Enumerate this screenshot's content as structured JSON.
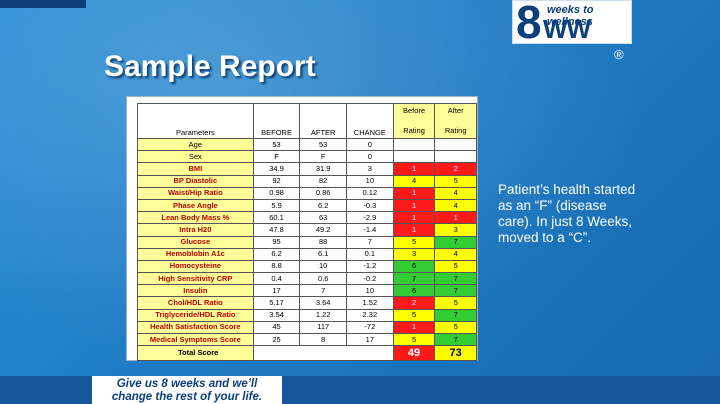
{
  "slide": {
    "title": "Sample Report",
    "logo": {
      "number": "8",
      "tagline": "weeks to wellness",
      "letters": "WW"
    },
    "registered_mark": "®",
    "note": "Patient’s health started as an “F” (disease care). In just 8 Weeks, moved to a “C”.",
    "tagline_line1": "Give us 8 weeks and we’ll",
    "tagline_line2": "change the rest of your life.",
    "colors": {
      "background": "#1f7cc4",
      "rating_red": "#ff1a1a",
      "rating_yellow": "#ffff00",
      "rating_green": "#33cc33",
      "param_fill": "#ffff99"
    }
  },
  "table": {
    "headers": {
      "parameters": "Parameters",
      "before": "BEFORE",
      "after": "AFTER",
      "change": "CHANGE",
      "before_rating_1": "Before",
      "before_rating_2": "Rating",
      "after_rating_1": "After",
      "after_rating_2": "Rating"
    },
    "rows": [
      {
        "param": "Age",
        "before": "53",
        "after": "53",
        "change": "0",
        "before_rating": "",
        "after_rating": "",
        "before_color": "white",
        "after_color": "white",
        "style": "plain"
      },
      {
        "param": "Sex",
        "before": "F",
        "after": "F",
        "change": "0",
        "before_rating": "",
        "after_rating": "",
        "before_color": "white",
        "after_color": "white",
        "style": "plain"
      },
      {
        "param": "BMI",
        "before": "34.9",
        "after": "31.9",
        "change": "3",
        "before_rating": "1",
        "after_rating": "2",
        "before_color": "red",
        "after_color": "red",
        "style": "red"
      },
      {
        "param": "BP Diastolic",
        "before": "92",
        "after": "82",
        "change": "10",
        "before_rating": "4",
        "after_rating": "5",
        "before_color": "yellow",
        "after_color": "yellow",
        "style": "red"
      },
      {
        "param": "Waist/Hip Ratio",
        "before": "0.98",
        "after": "0.86",
        "change": "0.12",
        "before_rating": "1",
        "after_rating": "4",
        "before_color": "red",
        "after_color": "yellow",
        "style": "red"
      },
      {
        "param": "Phase Angle",
        "before": "5.9",
        "after": "6.2",
        "change": "-0.3",
        "before_rating": "1",
        "after_rating": "4",
        "before_color": "red",
        "after_color": "yellow",
        "style": "red"
      },
      {
        "param": "Lean Body Mass %",
        "before": "60.1",
        "after": "63",
        "change": "-2.9",
        "before_rating": "1",
        "after_rating": "1",
        "before_color": "red",
        "after_color": "red",
        "style": "red"
      },
      {
        "param": "Intra H20",
        "before": "47.8",
        "after": "49.2",
        "change": "-1.4",
        "before_rating": "1",
        "after_rating": "3",
        "before_color": "red",
        "after_color": "yellow",
        "style": "red"
      },
      {
        "param": "Glucose",
        "before": "95",
        "after": "88",
        "change": "7",
        "before_rating": "5",
        "after_rating": "7",
        "before_color": "yellow",
        "after_color": "green",
        "style": "red"
      },
      {
        "param": "Hemoblobin A1c",
        "before": "6.2",
        "after": "6.1",
        "change": "0.1",
        "before_rating": "3",
        "after_rating": "4",
        "before_color": "yellow",
        "after_color": "yellow",
        "style": "red"
      },
      {
        "param": "Homocysteine",
        "before": "8.8",
        "after": "10",
        "change": "-1.2",
        "before_rating": "6",
        "after_rating": "5",
        "before_color": "green",
        "after_color": "yellow",
        "style": "red"
      },
      {
        "param": "High Sensitivity CRP",
        "before": "0.4",
        "after": "0.6",
        "change": "-0.2",
        "before_rating": "7",
        "after_rating": "7",
        "before_color": "green",
        "after_color": "green",
        "style": "red"
      },
      {
        "param": "Insulin",
        "before": "17",
        "after": "7",
        "change": "10",
        "before_rating": "6",
        "after_rating": "7",
        "before_color": "green",
        "after_color": "green",
        "style": "red"
      },
      {
        "param": "Chol/HDL Ratio",
        "before": "5.17",
        "after": "3.64",
        "change": "1.52",
        "before_rating": "2",
        "after_rating": "5",
        "before_color": "red",
        "after_color": "yellow",
        "style": "red"
      },
      {
        "param": "Triglyceride/HDL Ratio",
        "before": "3.54",
        "after": "1.22",
        "change": "2.32",
        "before_rating": "5",
        "after_rating": "7",
        "before_color": "yellow",
        "after_color": "green",
        "style": "red"
      },
      {
        "param": "Health Satisfaction Score",
        "before": "45",
        "after": "117",
        "change": "-72",
        "before_rating": "1",
        "after_rating": "5",
        "before_color": "red",
        "after_color": "yellow",
        "style": "red"
      },
      {
        "param": "Medical Symptoms Score",
        "before": "25",
        "after": "8",
        "change": "17",
        "before_rating": "5",
        "after_rating": "7",
        "before_color": "yellow",
        "after_color": "green",
        "style": "red"
      }
    ],
    "total": {
      "label": "Total Score",
      "before": "49",
      "after": "73",
      "before_color": "red",
      "after_color": "yellow"
    }
  }
}
